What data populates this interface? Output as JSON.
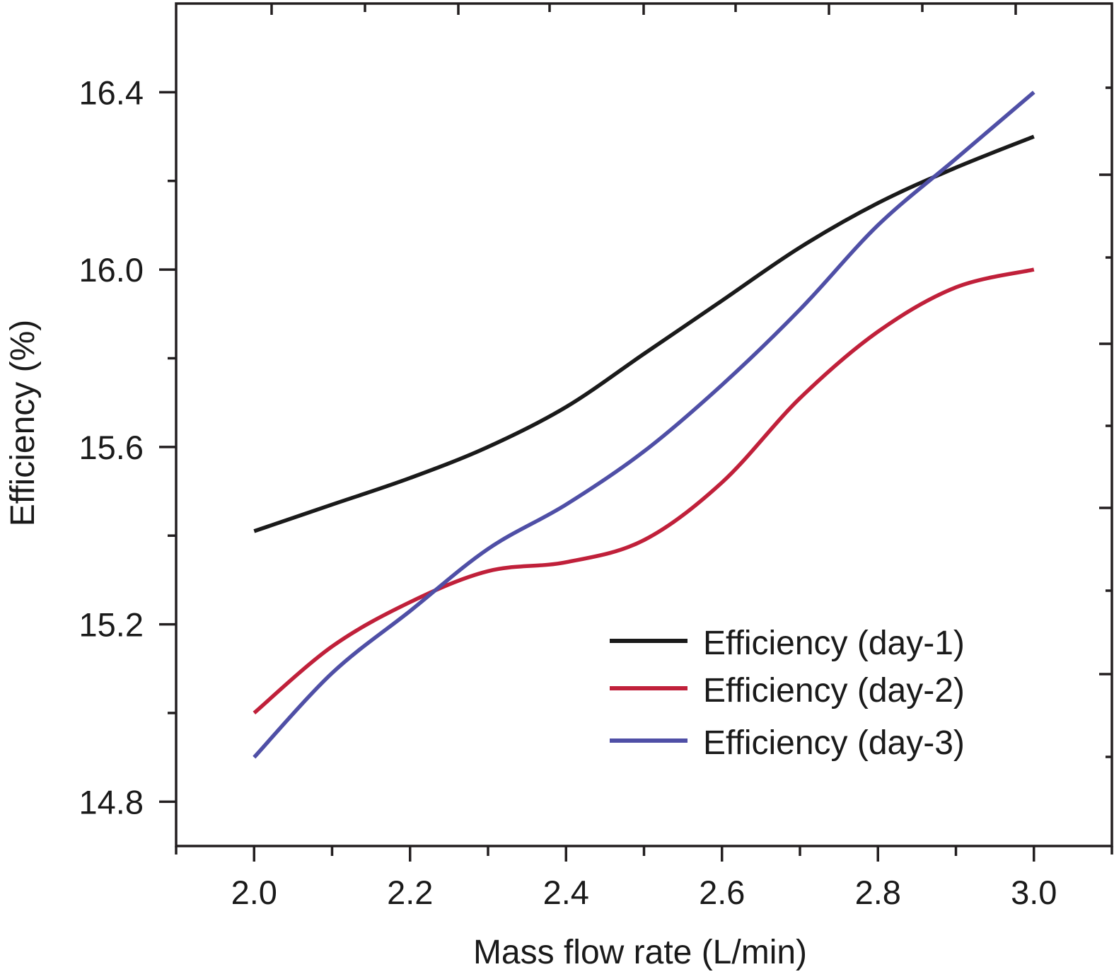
{
  "chart_data": {
    "type": "line",
    "title": "",
    "xlabel": "Mass flow rate (L/min)",
    "ylabel": "Efficiency (%)",
    "xlim": [
      1.9,
      3.1
    ],
    "ylim": [
      14.7,
      16.6
    ],
    "x_ticks": [
      2.0,
      2.2,
      2.4,
      2.6,
      2.8,
      3.0
    ],
    "x_tick_labels": [
      "2.0",
      "2.2",
      "2.4",
      "2.6",
      "2.8",
      "3.0"
    ],
    "x_minor_ticks": [
      2.1,
      2.3,
      2.5,
      2.7,
      2.9
    ],
    "y_ticks": [
      14.8,
      15.2,
      15.6,
      16.0,
      16.4
    ],
    "y_tick_labels": [
      "14.8",
      "15.2",
      "15.6",
      "16.0",
      "16.4"
    ],
    "y_minor_ticks": [
      15.0,
      15.4,
      15.8,
      16.2
    ],
    "grid": false,
    "legend_position": "bottom-right",
    "x": [
      2.0,
      2.1,
      2.2,
      2.3,
      2.4,
      2.5,
      2.6,
      2.7,
      2.8,
      2.9,
      3.0
    ],
    "series": [
      {
        "name": "Efficiency (day-1)",
        "color": "#1a1a1a",
        "values": [
          15.41,
          15.47,
          15.53,
          15.6,
          15.69,
          15.81,
          15.93,
          16.05,
          16.15,
          16.23,
          16.3
        ]
      },
      {
        "name": "Efficiency (day-2)",
        "color": "#c0203a",
        "values": [
          15.0,
          15.15,
          15.25,
          15.32,
          15.34,
          15.39,
          15.52,
          15.71,
          15.86,
          15.96,
          16.0
        ]
      },
      {
        "name": "Efficiency (day-3)",
        "color": "#4f4fa6",
        "values": [
          14.9,
          15.09,
          15.23,
          15.37,
          15.47,
          15.59,
          15.74,
          15.91,
          16.1,
          16.25,
          16.4
        ]
      }
    ]
  }
}
